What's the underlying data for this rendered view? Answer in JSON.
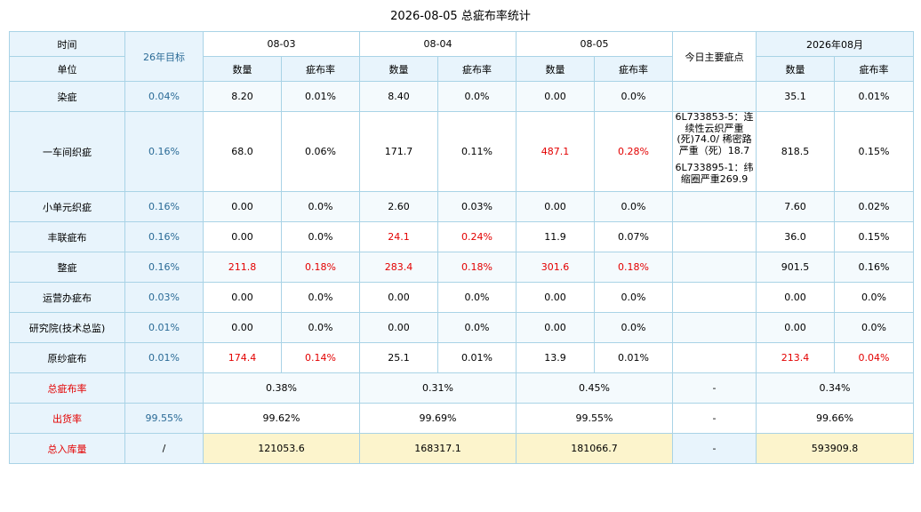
{
  "title": "2026-08-05 总疵布率统计",
  "header": {
    "time_label": "时间",
    "unit_label": "单位",
    "target_label": "26年目标",
    "dates": [
      "08-03",
      "08-04",
      "08-05"
    ],
    "main_defects_label": "今日主要疵点",
    "month_label": "2026年08月",
    "qty_label": "数量",
    "rate_label": "疵布率"
  },
  "rows": [
    {
      "name": "染疵",
      "target": "0.04%",
      "d1q": "8.20",
      "d1r": "0.01%",
      "d2q": "8.40",
      "d2r": "0.0%",
      "d3q": "0.00",
      "d3r": "0.0%",
      "note": "",
      "mq": "35.1",
      "mr": "0.01%"
    },
    {
      "name": "一车间织疵",
      "target": "0.16%",
      "d1q": "68.0",
      "d1r": "0.06%",
      "d2q": "171.7",
      "d2r": "0.11%",
      "d3q": "487.1",
      "d3r": "0.28%",
      "note1": "6L733853-5：连续性云织严重(死)74.0/ 稀密路严重（死）18.7",
      "note2": "6L733895-1：纬缩圈严重269.9",
      "mq": "818.5",
      "mr": "0.15%"
    },
    {
      "name": "小单元织疵",
      "target": "0.16%",
      "d1q": "0.00",
      "d1r": "0.0%",
      "d2q": "2.60",
      "d2r": "0.03%",
      "d3q": "0.00",
      "d3r": "0.0%",
      "note": "",
      "mq": "7.60",
      "mr": "0.02%"
    },
    {
      "name": "丰联疵布",
      "target": "0.16%",
      "d1q": "0.00",
      "d1r": "0.0%",
      "d2q": "24.1",
      "d2r": "0.24%",
      "d3q": "11.9",
      "d3r": "0.07%",
      "note": "",
      "mq": "36.0",
      "mr": "0.15%"
    },
    {
      "name": "整疵",
      "target": "0.16%",
      "d1q": "211.8",
      "d1r": "0.18%",
      "d2q": "283.4",
      "d2r": "0.18%",
      "d3q": "301.6",
      "d3r": "0.18%",
      "note": "",
      "mq": "901.5",
      "mr": "0.16%"
    },
    {
      "name": "运营办疵布",
      "target": "0.03%",
      "d1q": "0.00",
      "d1r": "0.0%",
      "d2q": "0.00",
      "d2r": "0.0%",
      "d3q": "0.00",
      "d3r": "0.0%",
      "note": "",
      "mq": "0.00",
      "mr": "0.0%"
    },
    {
      "name": "研究院(技术总监)",
      "target": "0.01%",
      "d1q": "0.00",
      "d1r": "0.0%",
      "d2q": "0.00",
      "d2r": "0.0%",
      "d3q": "0.00",
      "d3r": "0.0%",
      "note": "",
      "mq": "0.00",
      "mr": "0.0%"
    },
    {
      "name": "原纱疵布",
      "target": "0.01%",
      "d1q": "174.4",
      "d1r": "0.14%",
      "d2q": "25.1",
      "d2r": "0.01%",
      "d3q": "13.9",
      "d3r": "0.01%",
      "note": "",
      "mq": "213.4",
      "mr": "0.04%"
    }
  ],
  "summary": [
    {
      "name": "总疵布率",
      "target": "",
      "d1": "0.38%",
      "d2": "0.31%",
      "d3": "0.45%",
      "note": "-",
      "m": "0.34%"
    },
    {
      "name": "出货率",
      "target": "99.55%",
      "d1": "99.62%",
      "d2": "99.69%",
      "d3": "99.55%",
      "note": "-",
      "m": "99.66%"
    },
    {
      "name": "总入库量",
      "target": "/",
      "d1": "121053.6",
      "d2": "168317.1",
      "d3": "181066.7",
      "note": "-",
      "m": "593909.8"
    }
  ],
  "colors": {
    "highlight": "#e30000",
    "header_bg": "#e8f4fc",
    "total_bg": "#fcf4cc",
    "border": "#a9d3e6",
    "target_text": "#2a6a96"
  }
}
